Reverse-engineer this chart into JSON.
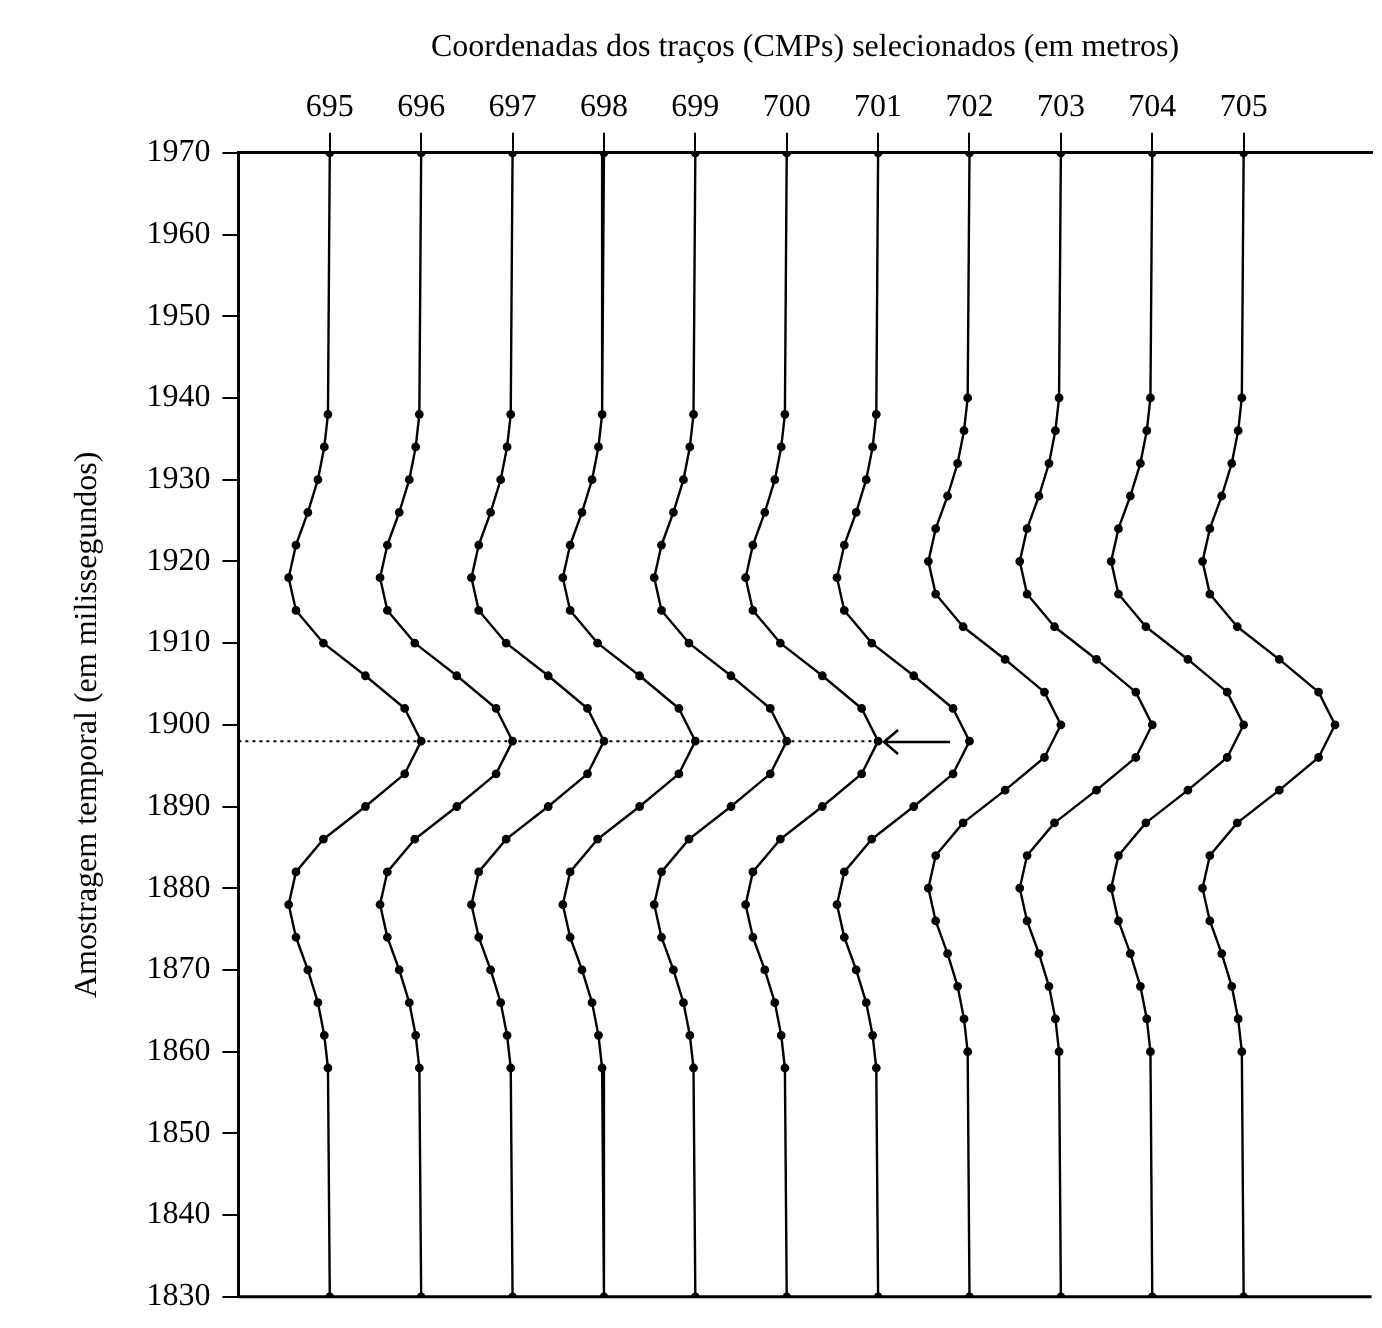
{
  "chart_data": {
    "type": "line",
    "xlabel": "Coordenadas dos traços (CMPs) selecionados (em metros)",
    "ylabel": "Amostragem temporal (em milissegundos)",
    "xlim": [
      694,
      706.4
    ],
    "xticks": [
      695,
      696,
      697,
      698,
      699,
      700,
      701,
      702,
      703,
      704,
      705
    ],
    "ylim": [
      1830,
      1970
    ],
    "yticks": [
      1830,
      1840,
      1850,
      1860,
      1870,
      1880,
      1890,
      1900,
      1910,
      1920,
      1930,
      1940,
      1950,
      1960,
      1970
    ],
    "grid": false,
    "legend": false,
    "marker": "circle",
    "line_style": "solid",
    "series": [
      {
        "color": "#000000",
        "x": [
          695,
          694.98,
          694.94,
          694.87,
          694.76,
          694.63,
          694.55,
          694.63,
          694.93,
          695.39,
          695.82,
          696,
          695.82,
          695.39,
          694.93,
          694.63,
          694.55,
          694.63,
          694.76,
          694.87,
          694.94,
          694.98,
          695
        ],
        "values": [
          1970,
          1938,
          1934,
          1930,
          1926,
          1922,
          1918,
          1914,
          1910,
          1906,
          1902,
          1898,
          1894,
          1890,
          1886,
          1882,
          1878,
          1874,
          1870,
          1866,
          1862,
          1858,
          1830
        ]
      },
      {
        "color": "#000000",
        "x": [
          696,
          695.98,
          695.94,
          695.87,
          695.76,
          695.63,
          695.55,
          695.63,
          695.93,
          696.39,
          696.82,
          697,
          696.82,
          696.39,
          695.93,
          695.63,
          695.55,
          695.63,
          695.76,
          695.87,
          695.94,
          695.98,
          696
        ],
        "values": [
          1970,
          1938,
          1934,
          1930,
          1926,
          1922,
          1918,
          1914,
          1910,
          1906,
          1902,
          1898,
          1894,
          1890,
          1886,
          1882,
          1878,
          1874,
          1870,
          1866,
          1862,
          1858,
          1830
        ]
      },
      {
        "color": "#000000",
        "x": [
          697,
          696.98,
          696.94,
          696.87,
          696.76,
          696.63,
          696.55,
          696.63,
          696.93,
          697.39,
          697.82,
          698,
          697.82,
          697.39,
          696.93,
          696.63,
          696.55,
          696.63,
          696.76,
          696.87,
          696.94,
          696.98,
          697
        ],
        "values": [
          1970,
          1938,
          1934,
          1930,
          1926,
          1922,
          1918,
          1914,
          1910,
          1906,
          1902,
          1898,
          1894,
          1890,
          1886,
          1882,
          1878,
          1874,
          1870,
          1866,
          1862,
          1858,
          1830
        ]
      },
      {
        "color": "#000000",
        "x": [
          698,
          697.98,
          697.94,
          697.87,
          697.76,
          697.63,
          697.55,
          697.63,
          697.93,
          698.39,
          698.82,
          699,
          698.82,
          698.39,
          697.93,
          697.63,
          697.55,
          697.63,
          697.76,
          697.87,
          697.94,
          697.98,
          698
        ],
        "values": [
          1970,
          1938,
          1934,
          1930,
          1926,
          1922,
          1918,
          1914,
          1910,
          1906,
          1902,
          1898,
          1894,
          1890,
          1886,
          1882,
          1878,
          1874,
          1870,
          1866,
          1862,
          1858,
          1830
        ]
      },
      {
        "color": "#000000",
        "x": [
          699,
          698.98,
          698.94,
          698.87,
          698.76,
          698.63,
          698.55,
          698.63,
          698.93,
          699.39,
          699.82,
          700,
          699.82,
          699.39,
          698.93,
          698.63,
          698.55,
          698.63,
          698.76,
          698.87,
          698.94,
          698.98,
          699
        ],
        "values": [
          1970,
          1938,
          1934,
          1930,
          1926,
          1922,
          1918,
          1914,
          1910,
          1906,
          1902,
          1898,
          1894,
          1890,
          1886,
          1882,
          1878,
          1874,
          1870,
          1866,
          1862,
          1858,
          1830
        ]
      },
      {
        "color": "#000000",
        "x": [
          700,
          699.98,
          699.94,
          699.87,
          699.76,
          699.63,
          699.55,
          699.63,
          699.93,
          700.39,
          700.82,
          701,
          700.82,
          700.39,
          699.93,
          699.63,
          699.55,
          699.63,
          699.76,
          699.87,
          699.94,
          699.98,
          700
        ],
        "values": [
          1970,
          1938,
          1934,
          1930,
          1926,
          1922,
          1918,
          1914,
          1910,
          1906,
          1902,
          1898,
          1894,
          1890,
          1886,
          1882,
          1878,
          1874,
          1870,
          1866,
          1862,
          1858,
          1830
        ]
      },
      {
        "color": "#000000",
        "x": [
          701,
          700.98,
          700.94,
          700.87,
          700.76,
          700.63,
          700.55,
          700.63,
          700.93,
          701.39,
          701.82,
          702,
          701.82,
          701.39,
          700.93,
          700.63,
          700.55,
          700.63,
          700.76,
          700.87,
          700.94,
          700.98,
          701
        ],
        "values": [
          1970,
          1938,
          1934,
          1930,
          1926,
          1922,
          1918,
          1914,
          1910,
          1906,
          1902,
          1898,
          1894,
          1890,
          1886,
          1882,
          1878,
          1874,
          1870,
          1866,
          1862,
          1858,
          1830
        ]
      },
      {
        "color": "#000000",
        "x": [
          702,
          701.98,
          701.94,
          701.87,
          701.76,
          701.63,
          701.55,
          701.63,
          701.93,
          702.39,
          702.82,
          703,
          702.82,
          702.39,
          701.93,
          701.63,
          701.55,
          701.63,
          701.76,
          701.87,
          701.94,
          701.98,
          702
        ],
        "values": [
          1970,
          1940,
          1936,
          1932,
          1928,
          1924,
          1920,
          1916,
          1912,
          1908,
          1904,
          1900,
          1896,
          1892,
          1888,
          1884,
          1880,
          1876,
          1872,
          1868,
          1864,
          1860,
          1830
        ]
      },
      {
        "color": "#000000",
        "x": [
          703,
          702.98,
          702.94,
          702.87,
          702.76,
          702.63,
          702.55,
          702.63,
          702.93,
          703.39,
          703.82,
          704,
          703.82,
          703.39,
          702.93,
          702.63,
          702.55,
          702.63,
          702.76,
          702.87,
          702.94,
          702.98,
          703
        ],
        "values": [
          1970,
          1940,
          1936,
          1932,
          1928,
          1924,
          1920,
          1916,
          1912,
          1908,
          1904,
          1900,
          1896,
          1892,
          1888,
          1884,
          1880,
          1876,
          1872,
          1868,
          1864,
          1860,
          1830
        ]
      },
      {
        "color": "#000000",
        "x": [
          704,
          703.98,
          703.94,
          703.87,
          703.76,
          703.63,
          703.55,
          703.63,
          703.93,
          704.39,
          704.82,
          705,
          704.82,
          704.39,
          703.93,
          703.63,
          703.55,
          703.63,
          703.76,
          703.87,
          703.94,
          703.98,
          704
        ],
        "values": [
          1970,
          1940,
          1936,
          1932,
          1928,
          1924,
          1920,
          1916,
          1912,
          1908,
          1904,
          1900,
          1896,
          1892,
          1888,
          1884,
          1880,
          1876,
          1872,
          1868,
          1864,
          1860,
          1830
        ]
      },
      {
        "color": "#000000",
        "x": [
          705,
          704.98,
          704.94,
          704.87,
          704.76,
          704.63,
          704.55,
          704.63,
          704.93,
          705.39,
          705.82,
          706,
          705.82,
          705.39,
          704.93,
          704.63,
          704.55,
          704.63,
          704.76,
          704.87,
          704.94,
          704.98,
          705
        ],
        "values": [
          1970,
          1940,
          1936,
          1932,
          1928,
          1924,
          1920,
          1916,
          1912,
          1908,
          1904,
          1900,
          1896,
          1892,
          1888,
          1884,
          1880,
          1876,
          1872,
          1868,
          1864,
          1860,
          1830
        ]
      },
      {
        "color": "#000000",
        "marker": "none",
        "line_style": "dotted",
        "x": [
          694,
          701
        ],
        "values": [
          1898,
          1898
        ]
      }
    ]
  }
}
